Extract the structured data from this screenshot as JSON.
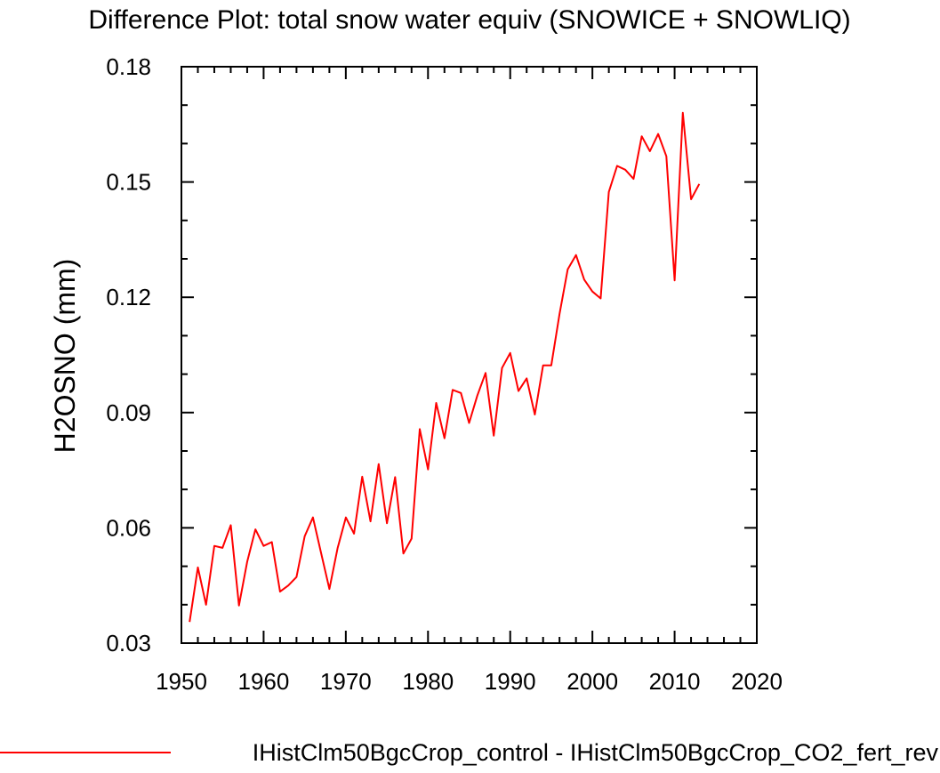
{
  "chart_data": {
    "type": "line",
    "title": "Difference Plot: total snow water equiv (SNOWICE + SNOWLIQ)",
    "xlabel": "",
    "ylabel": "H2OSNO  (mm)",
    "xlim": [
      1950,
      2020
    ],
    "ylim": [
      0.03,
      0.18
    ],
    "xticks": [
      1950,
      1960,
      1970,
      1980,
      1990,
      2000,
      2010,
      2020
    ],
    "xtick_labels": [
      "1950",
      "1960",
      "1970",
      "1980",
      "1990",
      "2000",
      "2010",
      "2020"
    ],
    "yticks": [
      0.03,
      0.06,
      0.09,
      0.12,
      0.15,
      0.18
    ],
    "ytick_labels": [
      "0.03",
      "0.06",
      "0.09",
      "0.12",
      "0.15",
      "0.18"
    ],
    "x_minor_step": 2,
    "y_minor_step": 0.01,
    "grid": false,
    "legend_position": "bottom",
    "series": [
      {
        "name": "IHistClm50BgcCrop_control - IHistClm50BgcCrop_CO2_fert_rev",
        "color": "#ff0000",
        "x": [
          1951,
          1952,
          1953,
          1954,
          1955,
          1956,
          1957,
          1958,
          1959,
          1960,
          1961,
          1962,
          1963,
          1964,
          1965,
          1966,
          1967,
          1968,
          1969,
          1970,
          1971,
          1972,
          1973,
          1974,
          1975,
          1976,
          1977,
          1978,
          1979,
          1980,
          1981,
          1982,
          1983,
          1984,
          1985,
          1986,
          1987,
          1988,
          1989,
          1990,
          1991,
          1992,
          1993,
          1994,
          1995,
          1996,
          1997,
          1998,
          1999,
          2000,
          2001,
          2002,
          2003,
          2004,
          2005,
          2006,
          2007,
          2008,
          2009,
          2010,
          2011,
          2012,
          2013
        ],
        "values": [
          0.0355,
          0.0497,
          0.04,
          0.0553,
          0.0548,
          0.0607,
          0.0398,
          0.0511,
          0.0596,
          0.0553,
          0.0563,
          0.0434,
          0.045,
          0.0472,
          0.0578,
          0.0627,
          0.0534,
          0.0441,
          0.0547,
          0.0627,
          0.0585,
          0.0733,
          0.0617,
          0.0766,
          0.0612,
          0.0732,
          0.0533,
          0.0572,
          0.0857,
          0.0752,
          0.0925,
          0.0833,
          0.0959,
          0.0951,
          0.0873,
          0.0944,
          0.1003,
          0.084,
          0.1016,
          0.1055,
          0.0956,
          0.0989,
          0.0895,
          0.1023,
          0.1023,
          0.1157,
          0.1273,
          0.131,
          0.1246,
          0.1215,
          0.1197,
          0.1474,
          0.1542,
          0.1532,
          0.1508,
          0.1619,
          0.158,
          0.1625,
          0.1567,
          0.1244,
          0.168,
          0.1455,
          0.1495
        ]
      }
    ]
  }
}
